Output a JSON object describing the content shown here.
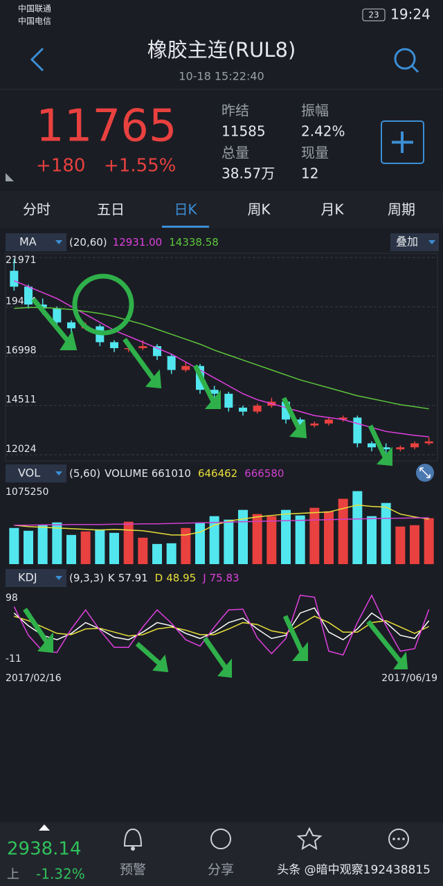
{
  "status": {
    "carrier_1": "中国联通",
    "carrier_2": "中国电信",
    "battery": "23",
    "time": "19:24"
  },
  "header": {
    "title": "橡胶主连(RUL8)",
    "datetime": "10-18 15:22:40"
  },
  "quote": {
    "price": "11765",
    "change": "+180",
    "change_pct": "+1.55%",
    "stats": [
      {
        "label": "昨结",
        "value": "11585"
      },
      {
        "label": "振幅",
        "value": "2.42%"
      },
      {
        "label": "总量",
        "value": "38.57万"
      },
      {
        "label": "现量",
        "value": "12"
      }
    ]
  },
  "tabs": [
    "分时",
    "五日",
    "日K",
    "周K",
    "月K",
    "周期"
  ],
  "chart_data": [
    {
      "type": "candlestick",
      "indicator": "MA",
      "params": "(20,60)",
      "overlay": "叠加",
      "open": [
        21300,
        20500,
        19600,
        19400,
        18700,
        18400,
        18500,
        17700,
        17400,
        17400,
        17500,
        17000,
        16300,
        16500,
        15300,
        15100,
        14400,
        14200,
        14500,
        14700,
        13800,
        13500,
        13600,
        13800,
        13900,
        12600,
        12400,
        12300,
        12400,
        12600
      ],
      "high": [
        21900,
        20600,
        19900,
        19500,
        18800,
        18700,
        18600,
        17800,
        17700,
        17800,
        17600,
        17100,
        16700,
        16600,
        15500,
        15200,
        14500,
        14600,
        14900,
        14800,
        13900,
        13700,
        13900,
        14000,
        14000,
        12700,
        12600,
        12500,
        12700,
        12900
      ],
      "low": [
        20300,
        19400,
        19100,
        18500,
        18200,
        18300,
        17500,
        17200,
        17200,
        17300,
        16800,
        16100,
        16200,
        15100,
        14900,
        14200,
        14000,
        14100,
        14400,
        13600,
        13300,
        13400,
        13500,
        13700,
        12400,
        12200,
        12100,
        12200,
        12300,
        12500
      ],
      "close": [
        20500,
        19600,
        19400,
        18700,
        18400,
        18500,
        17700,
        17400,
        17400,
        17500,
        17000,
        16300,
        16500,
        15300,
        15100,
        14400,
        14200,
        14500,
        14700,
        13800,
        13500,
        13600,
        13800,
        13900,
        12600,
        12400,
        12300,
        12400,
        12600,
        12700
      ],
      "up_color": "#e8413f",
      "down_color": "#52e6ef",
      "series": [
        {
          "label": "12931.00",
          "color": "#e040e0",
          "values": [
            20800,
            20500,
            20200,
            19900,
            19500,
            19100,
            18700,
            18300,
            18000,
            17700,
            17400,
            17100,
            16700,
            16300,
            15900,
            15500,
            15100,
            14800,
            14600,
            14400,
            14200,
            14000,
            13900,
            13800,
            13600,
            13400,
            13200,
            13100,
            13000,
            12931
          ]
        },
        {
          "label": "14338.58",
          "color": "#5cc83c",
          "values": [
            19400,
            19450,
            19450,
            19400,
            19350,
            19250,
            19150,
            19000,
            18800,
            18600,
            18350,
            18100,
            17850,
            17600,
            17300,
            17050,
            16800,
            16550,
            16300,
            16050,
            15800,
            15600,
            15400,
            15200,
            15000,
            14850,
            14700,
            14550,
            14450,
            14338.58
          ]
        }
      ],
      "ylim": [
        12024,
        21971
      ],
      "yticks": [
        21971,
        19484,
        16998,
        14511,
        12024
      ]
    },
    {
      "type": "volume",
      "indicator": "VOL",
      "params": "(5,60)",
      "current_label": "VOLUME 661010",
      "values": [
        520000,
        480000,
        560000,
        600000,
        420000,
        470000,
        500000,
        450000,
        610000,
        380000,
        290000,
        300000,
        520000,
        600000,
        690000,
        640000,
        780000,
        720000,
        690000,
        780000,
        700000,
        810000,
        760000,
        940000,
        1050000,
        690000,
        880000,
        540000,
        560000,
        661010
      ],
      "series": [
        {
          "label": "646462",
          "color": "#e8e03a",
          "values": [
            560000,
            540000,
            530000,
            520000,
            510000,
            500000,
            490000,
            500000,
            490000,
            480000,
            450000,
            420000,
            420000,
            460000,
            560000,
            620000,
            650000,
            680000,
            700000,
            720000,
            730000,
            740000,
            750000,
            800000,
            850000,
            830000,
            820000,
            720000,
            680000,
            646462
          ]
        },
        {
          "label": "666580",
          "color": "#d040d0",
          "values": [
            560000,
            560000,
            565000,
            565000,
            570000,
            570000,
            570000,
            575000,
            575000,
            580000,
            580000,
            585000,
            590000,
            595000,
            600000,
            605000,
            610000,
            615000,
            620000,
            625000,
            630000,
            635000,
            640000,
            645000,
            650000,
            655000,
            658000,
            661000,
            664000,
            666580
          ]
        }
      ],
      "ylim": [
        0,
        1075250
      ],
      "yticks": [
        1075250
      ]
    },
    {
      "type": "kdj",
      "indicator": "KDJ",
      "params": "(9,3,3)",
      "series": [
        {
          "name": "K",
          "label": "57.91",
          "color": "#ffffff",
          "values": [
            70,
            50,
            35,
            28,
            38,
            55,
            45,
            32,
            28,
            40,
            55,
            50,
            38,
            30,
            40,
            55,
            62,
            45,
            30,
            35,
            70,
            78,
            40,
            28,
            45,
            70,
            55,
            35,
            30,
            57.91
          ]
        },
        {
          "name": "D",
          "label": "48.95",
          "color": "#e8e03a",
          "values": [
            65,
            58,
            48,
            38,
            36,
            45,
            46,
            40,
            34,
            36,
            45,
            48,
            43,
            36,
            36,
            45,
            55,
            52,
            42,
            38,
            52,
            65,
            55,
            40,
            40,
            55,
            58,
            48,
            38,
            48.95
          ]
        },
        {
          "name": "J",
          "label": "75.83",
          "color": "#e040e0",
          "values": [
            80,
            35,
            10,
            8,
            45,
            75,
            43,
            16,
            16,
            48,
            75,
            54,
            28,
            18,
            48,
            75,
            76,
            31,
            6,
            30,
            98,
            95,
            10,
            4,
            55,
            98,
            50,
            10,
            14,
            75.83
          ]
        }
      ],
      "ylim": [
        -11,
        98
      ],
      "yticks": [
        98,
        -11
      ],
      "x_labels": [
        "2017/02/16",
        "2017/06/19"
      ]
    }
  ],
  "bottom_bar": {
    "index_value": "2938.14",
    "index_name": "上",
    "index_change": "-1.32%",
    "items": [
      "预警",
      "分享"
    ],
    "watermark": "头条 @暗中观察192438815"
  }
}
